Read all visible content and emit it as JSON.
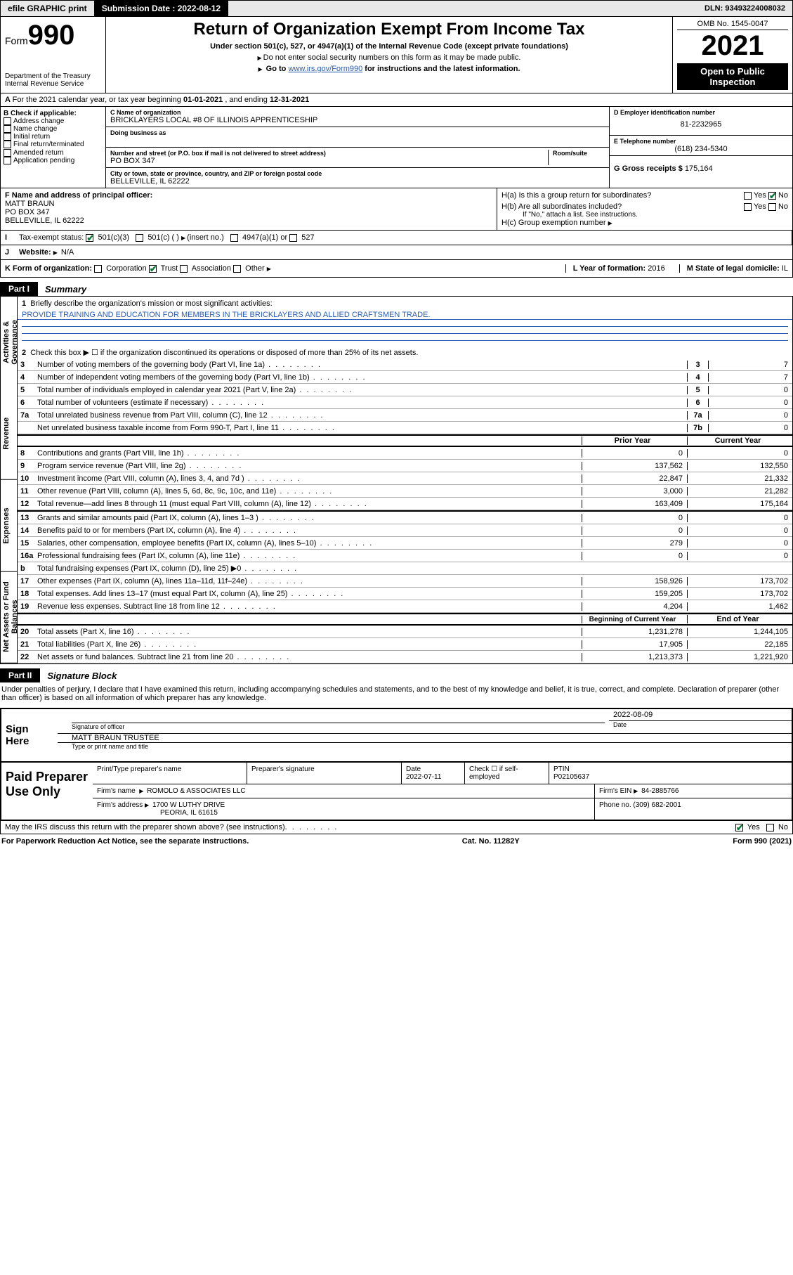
{
  "topbar": {
    "efile": "efile GRAPHIC print",
    "sub_label": "Submission Date : ",
    "sub_date": "2022-08-12",
    "dln_label": "DLN: ",
    "dln": "93493224008032"
  },
  "header": {
    "form_word": "Form",
    "form_num": "990",
    "dept": "Department of the Treasury\nInternal Revenue Service",
    "title": "Return of Organization Exempt From Income Tax",
    "sub1": "Under section 501(c), 527, or 4947(a)(1) of the Internal Revenue Code (except private foundations)",
    "sub2": "Do not enter social security numbers on this form as it may be made public.",
    "sub3_a": "Go to ",
    "sub3_link": "www.irs.gov/Form990",
    "sub3_b": " for instructions and the latest information.",
    "omb": "OMB No. 1545-0047",
    "year": "2021",
    "inspect": "Open to Public Inspection"
  },
  "line_a": {
    "text": "For the 2021 calendar year, or tax year beginning ",
    "begin": "01-01-2021",
    "mid": " , and ending ",
    "end": "12-31-2021"
  },
  "col_b": {
    "label": "B Check if applicable:",
    "items": [
      "Address change",
      "Name change",
      "Initial return",
      "Final return/terminated",
      "Amended return",
      "Application pending"
    ]
  },
  "col_c": {
    "name_lbl": "C Name of organization",
    "name": "BRICKLAYERS LOCAL #8 OF ILLINOIS APPRENTICESHIP",
    "dba_lbl": "Doing business as",
    "addr_lbl": "Number and street (or P.O. box if mail is not delivered to street address)",
    "room_lbl": "Room/suite",
    "addr": "PO BOX 347",
    "city_lbl": "City or town, state or province, country, and ZIP or foreign postal code",
    "city": "BELLEVILLE, IL  62222"
  },
  "col_d": {
    "ein_lbl": "D Employer identification number",
    "ein": "81-2232965",
    "tel_lbl": "E Telephone number",
    "tel": "(618) 234-5340",
    "gross_lbl": "G Gross receipts $ ",
    "gross": "175,164"
  },
  "row_f": {
    "lbl": "F Name and address of principal officer:",
    "name": "MATT BRAUN",
    "addr1": "PO BOX 347",
    "addr2": "BELLEVILLE, IL  62222"
  },
  "row_h": {
    "ha": "H(a)  Is this a group return for subordinates?",
    "hb": "H(b)  Are all subordinates included?",
    "hb_note": "If \"No,\" attach a list. See instructions.",
    "hc": "H(c)  Group exemption number",
    "yes": "Yes",
    "no": "No"
  },
  "row_i": {
    "lbl": "Tax-exempt status:",
    "c3": "501(c)(3)",
    "c": "501(c) (   )",
    "ins": "(insert no.)",
    "a1": "4947(a)(1) or",
    "s527": "527"
  },
  "row_j": {
    "lbl": "Website:",
    "val": "N/A"
  },
  "row_k": {
    "lbl": "K Form of organization:",
    "corp": "Corporation",
    "trust": "Trust",
    "assoc": "Association",
    "other": "Other",
    "l_lbl": "L Year of formation: ",
    "l_val": "2016",
    "m_lbl": "M State of legal domicile: ",
    "m_val": "IL"
  },
  "parts": {
    "p1": "Part I",
    "p1_t": "Summary",
    "p2": "Part II",
    "p2_t": "Signature Block"
  },
  "vtabs": [
    "Activities & Governance",
    "Revenue",
    "Expenses",
    "Net Assets or Fund Balances"
  ],
  "summary": {
    "l1": "Briefly describe the organization's mission or most significant activities:",
    "mission": "PROVIDE TRAINING AND EDUCATION FOR MEMBERS IN THE BRICKLAYERS AND ALLIED CRAFTSMEN TRADE.",
    "l2": "Check this box ▶ ☐  if the organization discontinued its operations or disposed of more than 25% of its net assets.",
    "hdr_prior": "Prior Year",
    "hdr_curr": "Current Year",
    "hdr_beg": "Beginning of Current Year",
    "hdr_end": "End of Year",
    "lines_top": [
      {
        "n": "3",
        "t": "Number of voting members of the governing body (Part VI, line 1a)",
        "box": "3",
        "v": "7"
      },
      {
        "n": "4",
        "t": "Number of independent voting members of the governing body (Part VI, line 1b)",
        "box": "4",
        "v": "7"
      },
      {
        "n": "5",
        "t": "Total number of individuals employed in calendar year 2021 (Part V, line 2a)",
        "box": "5",
        "v": "0"
      },
      {
        "n": "6",
        "t": "Total number of volunteers (estimate if necessary)",
        "box": "6",
        "v": "0"
      },
      {
        "n": "7a",
        "t": "Total unrelated business revenue from Part VIII, column (C), line 12",
        "box": "7a",
        "v": "0"
      },
      {
        "n": "",
        "t": "Net unrelated business taxable income from Form 990-T, Part I, line 11",
        "box": "7b",
        "v": "0"
      }
    ],
    "revenue": [
      {
        "n": "8",
        "t": "Contributions and grants (Part VIII, line 1h)",
        "p": "0",
        "c": "0"
      },
      {
        "n": "9",
        "t": "Program service revenue (Part VIII, line 2g)",
        "p": "137,562",
        "c": "132,550"
      },
      {
        "n": "10",
        "t": "Investment income (Part VIII, column (A), lines 3, 4, and 7d )",
        "p": "22,847",
        "c": "21,332"
      },
      {
        "n": "11",
        "t": "Other revenue (Part VIII, column (A), lines 5, 6d, 8c, 9c, 10c, and 11e)",
        "p": "3,000",
        "c": "21,282"
      },
      {
        "n": "12",
        "t": "Total revenue—add lines 8 through 11 (must equal Part VIII, column (A), line 12)",
        "p": "163,409",
        "c": "175,164"
      }
    ],
    "expenses": [
      {
        "n": "13",
        "t": "Grants and similar amounts paid (Part IX, column (A), lines 1–3 )",
        "p": "0",
        "c": "0"
      },
      {
        "n": "14",
        "t": "Benefits paid to or for members (Part IX, column (A), line 4)",
        "p": "0",
        "c": "0"
      },
      {
        "n": "15",
        "t": "Salaries, other compensation, employee benefits (Part IX, column (A), lines 5–10)",
        "p": "279",
        "c": "0"
      },
      {
        "n": "16a",
        "t": "Professional fundraising fees (Part IX, column (A), line 11e)",
        "p": "0",
        "c": "0"
      },
      {
        "n": "b",
        "t": "Total fundraising expenses (Part IX, column (D), line 25) ▶0",
        "p": "",
        "c": "",
        "grey": true
      },
      {
        "n": "17",
        "t": "Other expenses (Part IX, column (A), lines 11a–11d, 11f–24e)",
        "p": "158,926",
        "c": "173,702"
      },
      {
        "n": "18",
        "t": "Total expenses. Add lines 13–17 (must equal Part IX, column (A), line 25)",
        "p": "159,205",
        "c": "173,702"
      },
      {
        "n": "19",
        "t": "Revenue less expenses. Subtract line 18 from line 12",
        "p": "4,204",
        "c": "1,462"
      }
    ],
    "assets": [
      {
        "n": "20",
        "t": "Total assets (Part X, line 16)",
        "p": "1,231,278",
        "c": "1,244,105"
      },
      {
        "n": "21",
        "t": "Total liabilities (Part X, line 26)",
        "p": "17,905",
        "c": "22,185"
      },
      {
        "n": "22",
        "t": "Net assets or fund balances. Subtract line 21 from line 20",
        "p": "1,213,373",
        "c": "1,221,920"
      }
    ]
  },
  "sig": {
    "decl": "Under penalties of perjury, I declare that I have examined this return, including accompanying schedules and statements, and to the best of my knowledge and belief, it is true, correct, and complete. Declaration of preparer (other than officer) is based on all information of which preparer has any knowledge.",
    "sign_here": "Sign Here",
    "sig_off": "Signature of officer",
    "date_lbl": "Date",
    "date": "2022-08-09",
    "officer": "MATT BRAUN  TRUSTEE",
    "type_lbl": "Type or print name and title"
  },
  "paid": {
    "title": "Paid Preparer Use Only",
    "h1": "Print/Type preparer's name",
    "h2": "Preparer's signature",
    "h3": "Date",
    "date": "2022-07-11",
    "h4": "Check ☐ if self-employed",
    "h5": "PTIN",
    "ptin": "P02105637",
    "firm_lbl": "Firm's name",
    "firm": "ROMOLO & ASSOCIATES LLC",
    "ein_lbl": "Firm's EIN",
    "ein": "84-2885766",
    "addr_lbl": "Firm's address",
    "addr1": "1700 W LUTHY DRIVE",
    "addr2": "PEORIA, IL  61615",
    "phone_lbl": "Phone no.",
    "phone": "(309) 682-2001"
  },
  "bottom": {
    "q": "May the IRS discuss this return with the preparer shown above? (see instructions)",
    "yes": "Yes",
    "no": "No"
  },
  "footer": {
    "l": "For Paperwork Reduction Act Notice, see the separate instructions.",
    "m": "Cat. No. 11282Y",
    "r": "Form 990 (2021)"
  }
}
